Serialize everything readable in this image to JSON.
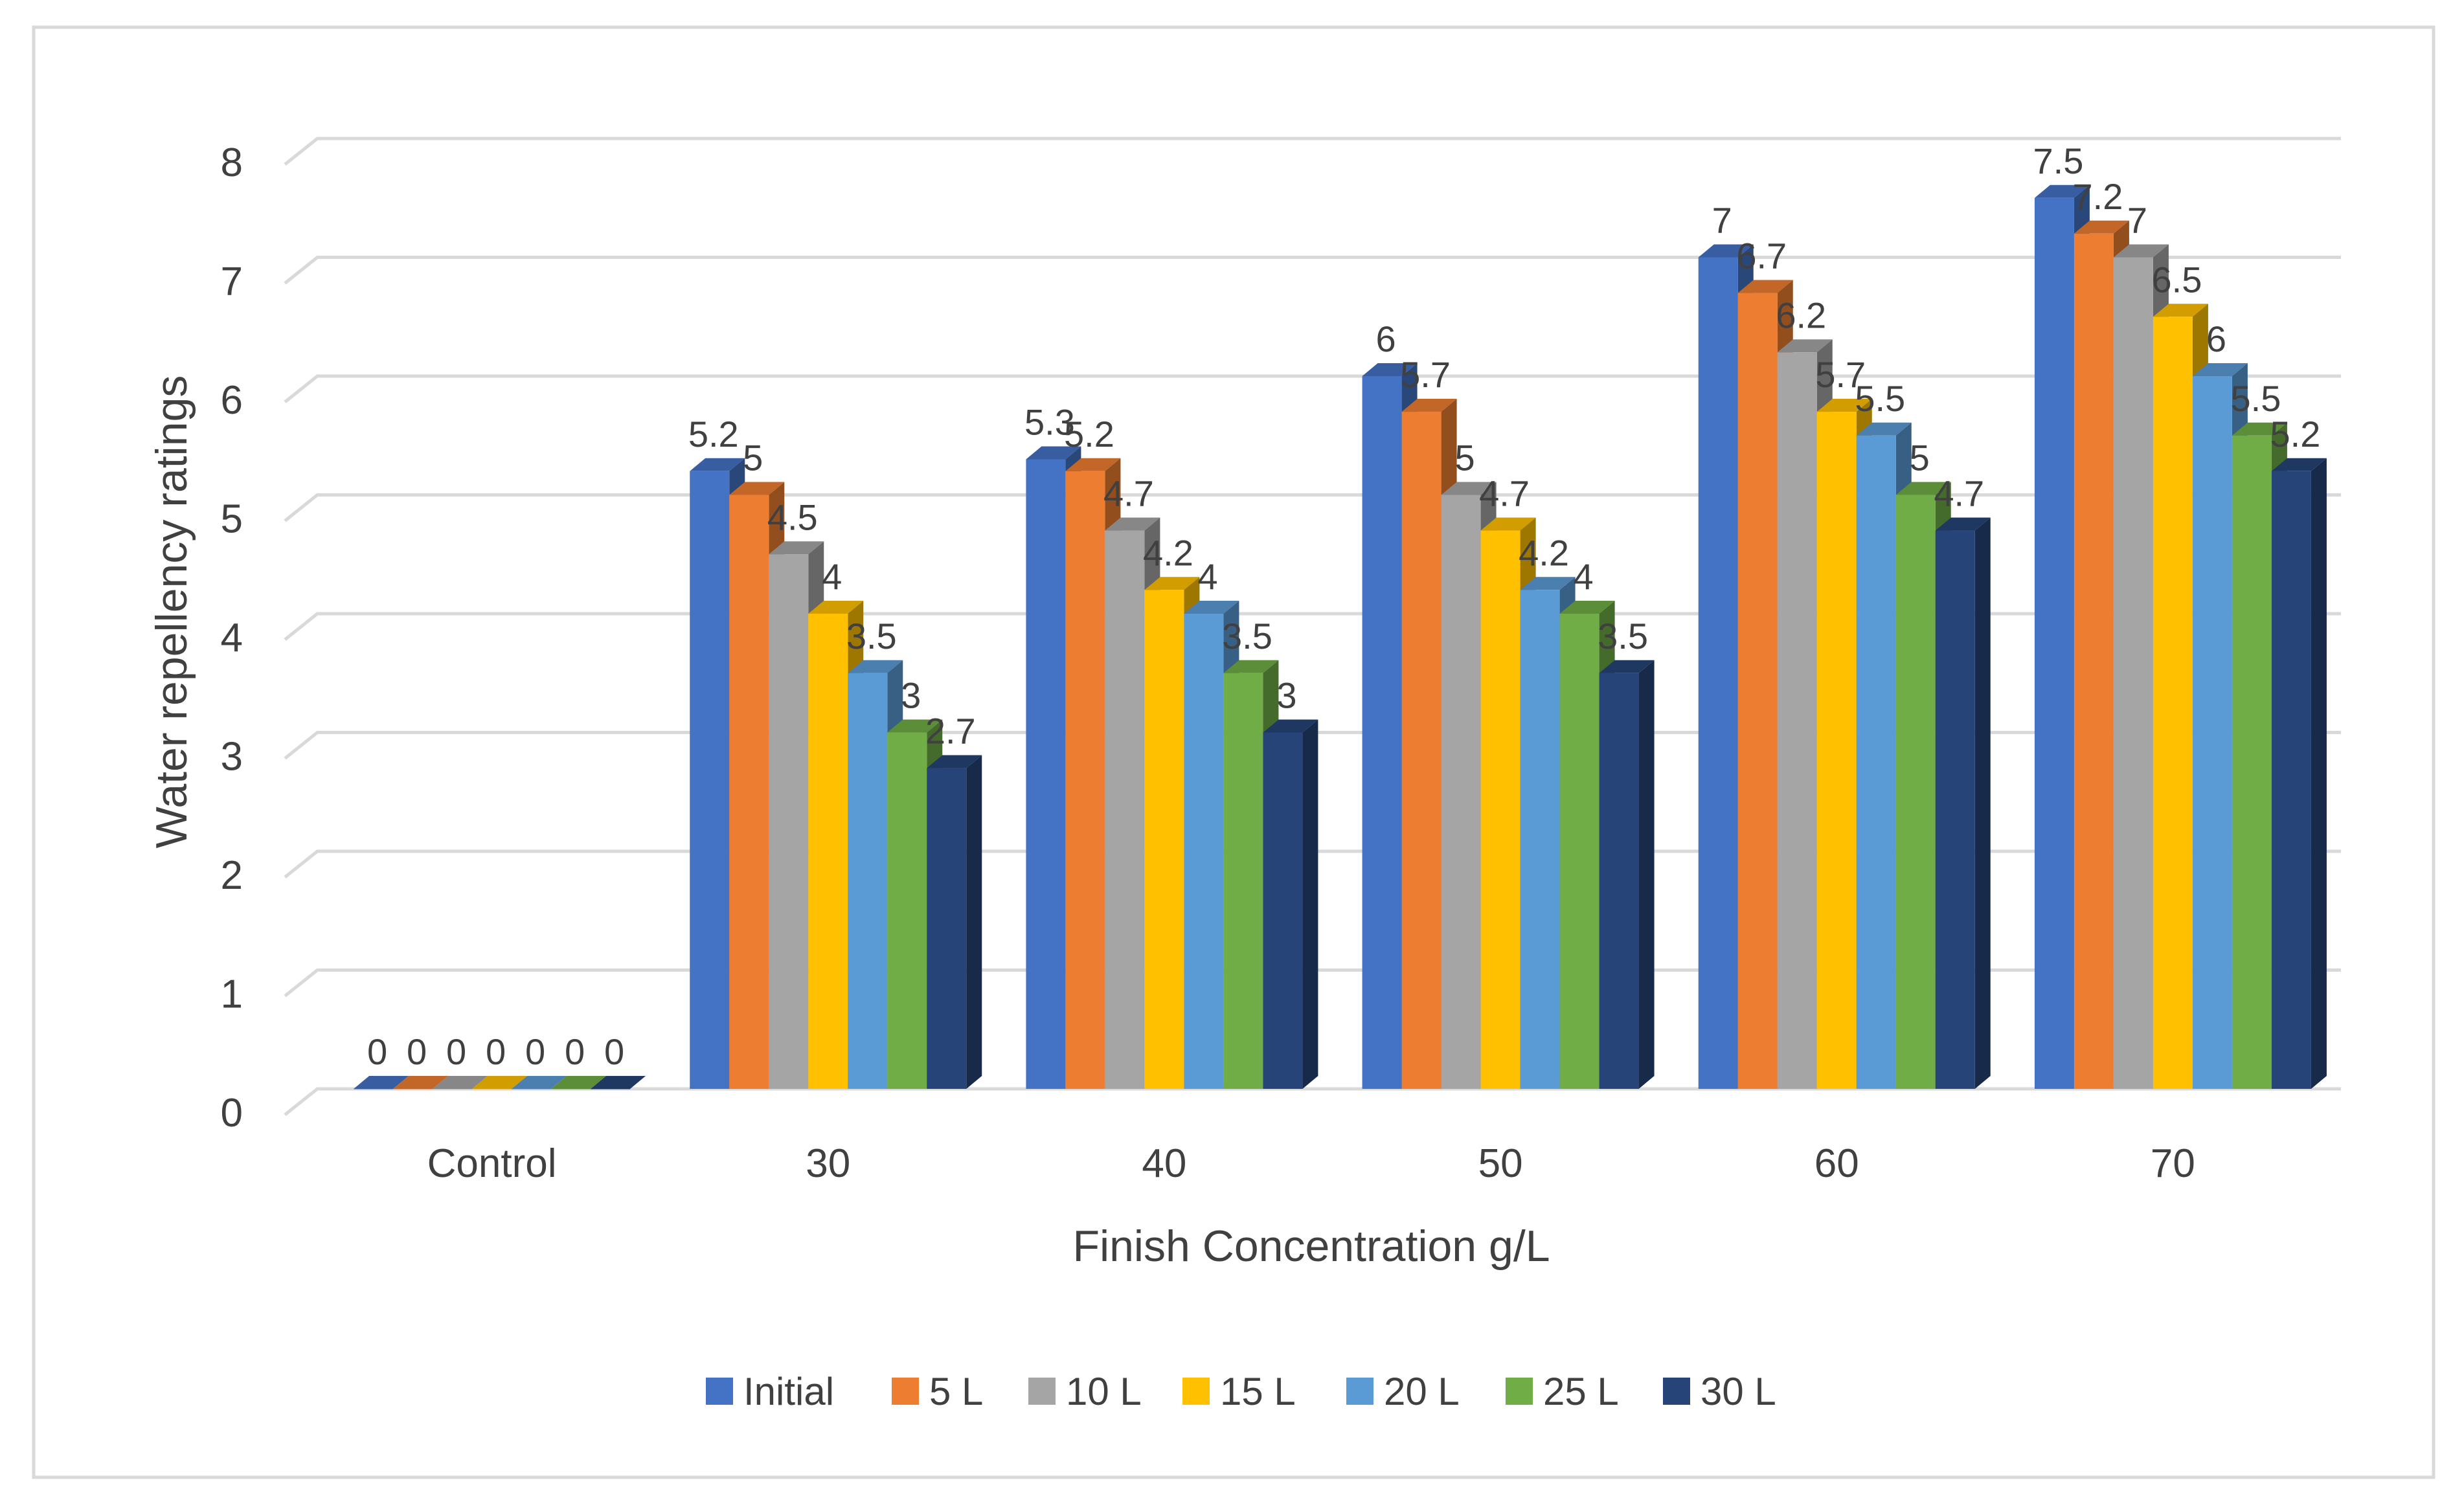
{
  "chart_data": {
    "type": "bar",
    "style": "3d-clustered-column",
    "title": "",
    "xlabel": "Finish Concentration g/L",
    "ylabel": "Water repellency ratings",
    "categories": [
      "Control",
      "30",
      "40",
      "50",
      "60",
      "70"
    ],
    "ylim": [
      0,
      8
    ],
    "yticks": [
      0,
      1,
      2,
      3,
      4,
      5,
      6,
      7,
      8
    ],
    "grid": true,
    "legend_position": "bottom",
    "series": [
      {
        "name": "Initial",
        "color": "#4472C4",
        "values": [
          0,
          5.2,
          5.3,
          6,
          7,
          7.5
        ]
      },
      {
        "name": "5 L",
        "color": "#ED7D31",
        "values": [
          0,
          5,
          5.2,
          5.7,
          6.7,
          7.2
        ]
      },
      {
        "name": "10 L",
        "color": "#A5A5A5",
        "values": [
          0,
          4.5,
          4.7,
          5,
          6.2,
          7
        ]
      },
      {
        "name": "15 L",
        "color": "#FFC000",
        "values": [
          0,
          4,
          4.2,
          4.7,
          5.7,
          6.5
        ]
      },
      {
        "name": "20 L",
        "color": "#5B9BD5",
        "values": [
          0,
          3.5,
          4,
          4.2,
          5.5,
          6
        ]
      },
      {
        "name": "25 L",
        "color": "#70AD47",
        "values": [
          0,
          3,
          3.5,
          4,
          5,
          5.5
        ]
      },
      {
        "name": "30 L",
        "color": "#264478",
        "values": [
          0,
          2.7,
          3,
          3.5,
          4.7,
          5.2
        ]
      }
    ]
  }
}
